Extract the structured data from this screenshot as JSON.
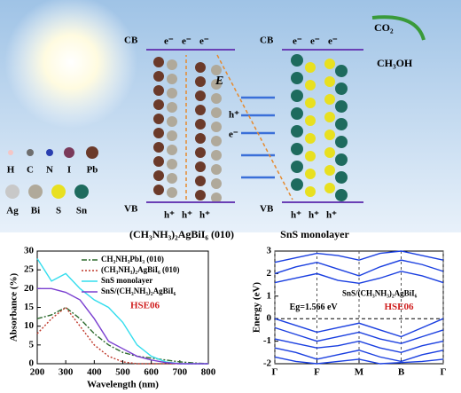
{
  "diagram": {
    "left_panel": {
      "cb": "CB",
      "vb": "VB",
      "electrons": [
        "e⁻",
        "e⁻",
        "e⁻"
      ],
      "holes": [
        "h⁺",
        "h⁺",
        "h⁺"
      ],
      "label": "(CH₃NH₃)₂AgBiI₆ (010)"
    },
    "right_panel": {
      "cb": "CB",
      "vb": "VB",
      "electrons": [
        "e⁻",
        "e⁻",
        "e⁻"
      ],
      "holes": [
        "h⁺",
        "h⁺",
        "h⁺"
      ],
      "label": "SnS monolayer"
    },
    "field": "E",
    "transfer_hole": "h⁺",
    "transfer_electron": "e⁻",
    "reactant": "CO₂",
    "product": "CH₃OH",
    "atoms_row1": [
      "H",
      "C",
      "N",
      "I",
      "Pb"
    ],
    "atoms_row2": [
      "Ag",
      "Bi",
      "S",
      "Sn"
    ]
  },
  "chart_data": [
    {
      "type": "line",
      "xlabel": "Wavelength (nm)",
      "ylabel": "Absorbance (%)",
      "annotation": "HSE06",
      "x": [
        200,
        250,
        300,
        350,
        400,
        450,
        500,
        550,
        600,
        650,
        700,
        750,
        800
      ],
      "xlim": [
        200,
        800
      ],
      "xticks": [
        200,
        300,
        400,
        500,
        600,
        700,
        800
      ],
      "ylim": [
        0,
        30
      ],
      "yticks": [
        0,
        5,
        10,
        15,
        20,
        25,
        30
      ],
      "series": [
        {
          "name": "CH₃NH₃PbI₃ (010)",
          "color": "#2e6b2e",
          "dash": "6 2 2 2",
          "values": [
            12,
            13,
            15,
            12,
            8,
            5,
            3,
            2,
            1.5,
            1,
            0.5,
            0.2,
            0
          ]
        },
        {
          "name": "(CH₃NH₃)₂AgBiI₆ (010)",
          "color": "#c0392b",
          "dash": "2 2",
          "values": [
            8,
            12,
            15,
            10,
            5,
            2,
            0.5,
            0,
            0,
            0,
            0,
            0,
            0
          ]
        },
        {
          "name": "SnS monolayer",
          "color": "#33dded",
          "dash": "",
          "values": [
            28,
            22,
            24,
            20,
            17,
            15,
            11,
            5,
            2,
            0.5,
            0,
            0,
            0
          ]
        },
        {
          "name": "SnS/(CH₃NH₃)₂AgBiI₆",
          "color": "#7a3fd0",
          "dash": "",
          "values": [
            20,
            20,
            19,
            17,
            12,
            6,
            4,
            2,
            1,
            0.3,
            0,
            0,
            0
          ]
        }
      ]
    },
    {
      "type": "line",
      "ylabel": "Energy (eV)",
      "annotation": "SnS/(CH₃NH₃)₂AgBiI₆",
      "gap_label": "Eg=1.566 eV",
      "annotation2": "HSE06",
      "x": [
        0,
        0.5,
        1,
        1.5,
        2,
        2.5,
        3,
        3.5,
        4
      ],
      "xlim": [
        0,
        4
      ],
      "xticks": [
        {
          "value": 0,
          "label": "Γ"
        },
        {
          "value": 1,
          "label": "F"
        },
        {
          "value": 2,
          "label": "M"
        },
        {
          "value": 3,
          "label": "B"
        },
        {
          "value": 4,
          "label": "Γ"
        }
      ],
      "ylim": [
        -2,
        3
      ],
      "yticks": [
        -2,
        -1,
        0,
        1,
        2,
        3
      ],
      "grid_x": true,
      "fermi_level": 0,
      "series": [
        {
          "color": "#1a3fe0",
          "values": [
            1.6,
            1.8,
            2.0,
            1.7,
            1.57,
            1.8,
            2.1,
            1.9,
            1.6
          ]
        },
        {
          "color": "#1a3fe0",
          "values": [
            2.0,
            2.3,
            2.5,
            2.2,
            1.9,
            2.3,
            2.6,
            2.4,
            2.1
          ]
        },
        {
          "color": "#1a3fe0",
          "values": [
            2.5,
            2.7,
            2.9,
            2.8,
            2.6,
            2.9,
            3.0,
            2.8,
            2.6
          ]
        },
        {
          "color": "#1a3fe0",
          "values": [
            0,
            -0.3,
            -0.6,
            -0.4,
            -0.2,
            -0.5,
            -0.8,
            -0.4,
            0
          ]
        },
        {
          "color": "#1a3fe0",
          "values": [
            -0.4,
            -0.7,
            -1.0,
            -0.8,
            -0.6,
            -0.9,
            -1.1,
            -0.8,
            -0.5
          ]
        },
        {
          "color": "#1a3fe0",
          "values": [
            -0.9,
            -1.1,
            -1.3,
            -1.2,
            -1.0,
            -1.3,
            -1.5,
            -1.2,
            -1.0
          ]
        },
        {
          "color": "#1a3fe0",
          "values": [
            -1.3,
            -1.5,
            -1.8,
            -1.6,
            -1.4,
            -1.7,
            -1.9,
            -1.6,
            -1.4
          ]
        },
        {
          "color": "#1a3fe0",
          "values": [
            -1.7,
            -1.9,
            -2.0,
            -1.9,
            -1.8,
            -2.0,
            -1.95,
            -1.9,
            -1.8
          ]
        }
      ]
    }
  ]
}
